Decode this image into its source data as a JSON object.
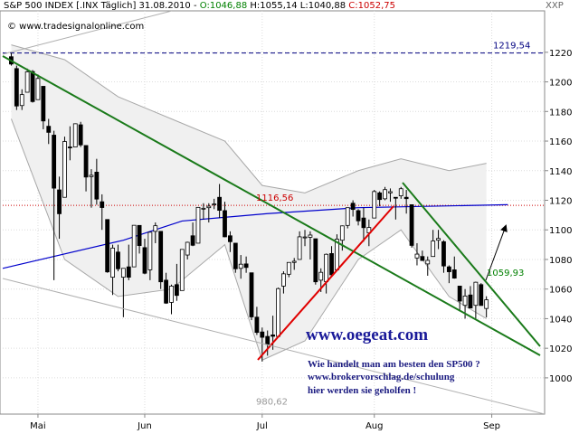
{
  "header": {
    "title": "S&P 500 INDEX [.INX Täglich] 31.08.2010 -",
    "open": "O:1046,88",
    "high_low": "H:1055,14 L:1040,88",
    "close": "C:1052,75",
    "symbol": "XXP",
    "source": "© www.tradesignalonline.com"
  },
  "chart_data": {
    "type": "candlestick",
    "categories": [
      null,
      null,
      null,
      null,
      null,
      null,
      null,
      null,
      null,
      null,
      null,
      null,
      null,
      null,
      null,
      null,
      null,
      null,
      null,
      null,
      null,
      null,
      null,
      null,
      null,
      null,
      null,
      null,
      null,
      null,
      null,
      null,
      null,
      null,
      null,
      null,
      null,
      null,
      null,
      null,
      null,
      null,
      null,
      null,
      null,
      null,
      null,
      null,
      null,
      null,
      null,
      null,
      null,
      null,
      null,
      null,
      null,
      null,
      null,
      null,
      null,
      null,
      null,
      null,
      null,
      null,
      null,
      null,
      null,
      null,
      null,
      null,
      null,
      null,
      null,
      null,
      null,
      null,
      null,
      null,
      null,
      null,
      null,
      null,
      null,
      null,
      null,
      null,
      null,
      null
    ],
    "open": [
      1217,
      1209,
      1184,
      1193,
      1207,
      1188,
      1197,
      1170,
      1164,
      1127,
      1122,
      1156,
      1156,
      1171,
      1157,
      1136,
      1139,
      1119,
      1107,
      1068,
      1085,
      1068,
      1075,
      1075,
      1103,
      1088,
      1073,
      1099,
      1099,
      1066,
      1051,
      1063,
      1059,
      1083,
      1096,
      1091,
      1114,
      1115,
      1117,
      1122,
      1113,
      1096,
      1091,
      1074,
      1077,
      1071,
      1041,
      1031,
      1028,
      1029,
      1028,
      1062,
      1070,
      1078,
      1080,
      1095,
      1095,
      1094,
      1066,
      1065,
      1084,
      1073,
      1093,
      1103,
      1118,
      1113,
      1108,
      1098,
      1108,
      1125,
      1121,
      1125,
      1122,
      1123,
      1122,
      1117,
      1081,
      1082,
      1077,
      1082,
      1093,
      1092,
      1075,
      1073,
      1062,
      1049,
      1056,
      1049,
      1063,
      1046.88
    ],
    "high": [
      1219.54,
      1211,
      1195,
      1209,
      1208,
      1205,
      1197,
      1175,
      1167,
      1136,
      1163,
      1170,
      1172,
      1173,
      1157,
      1141,
      1148,
      1124,
      1107,
      1090,
      1090,
      1074,
      1090,
      1103,
      1103,
      1094,
      1098,
      1105,
      1099,
      1071,
      1063,
      1077,
      1087,
      1092,
      1105,
      1115,
      1118,
      1118,
      1121,
      1131,
      1119,
      1099,
      1091,
      1083,
      1082,
      1071,
      1048,
      1034,
      1032,
      1042,
      1061,
      1072,
      1078,
      1081,
      1099,
      1100,
      1099,
      1094,
      1074,
      1084,
      1089,
      1097,
      1103,
      1115,
      1120,
      1114,
      1115,
      1107,
      1127,
      1126,
      1129,
      1128,
      1122,
      1129,
      1127,
      1117,
      1091,
      1086,
      1082,
      1100,
      1100,
      1093,
      1076,
      1082,
      1062,
      1060,
      1062,
      1065,
      1064,
      1055.14
    ],
    "low": [
      1211,
      1181,
      1181,
      1193,
      1186,
      1188,
      1168,
      1158,
      1066,
      1094,
      1122,
      1147,
      1156,
      1156,
      1126,
      1115,
      1117,
      1100,
      1071,
      1056,
      1072,
      1041,
      1066,
      1075,
      1084,
      1070,
      1066,
      1091,
      1060,
      1050,
      1043,
      1052,
      1059,
      1080,
      1089,
      1091,
      1107,
      1105,
      1114,
      1108,
      1095,
      1085,
      1071,
      1067,
      1071,
      1039,
      1029,
      1011,
      1015,
      1019,
      1028,
      1057,
      1068,
      1073,
      1080,
      1089,
      1080,
      1063,
      1058,
      1057,
      1068,
      1073,
      1086,
      1101,
      1109,
      1103,
      1092,
      1089,
      1108,
      1116,
      1120,
      1119,
      1107,
      1121,
      1111,
      1088,
      1076,
      1079,
      1069,
      1082,
      1087,
      1071,
      1064,
      1067,
      1046,
      1040,
      1047,
      1040,
      1049,
      1040.88
    ],
    "close": [
      1212.05,
      1183.7,
      1191.4,
      1206.8,
      1186.7,
      1202.3,
      1173.6,
      1165.9,
      1128.2,
      1110.9,
      1159.7,
      1155.8,
      1171.7,
      1157.4,
      1135.7,
      1136.9,
      1120.8,
      1115.1,
      1071.6,
      1087.7,
      1073.7,
      1074,
      1068,
      1103.1,
      1089.4,
      1070.7,
      1098.4,
      1102.8,
      1064.9,
      1050.5,
      1062,
      1055.7,
      1086.8,
      1091.6,
      1089.6,
      1115.2,
      1114.6,
      1116,
      1117.5,
      1113.2,
      1095.3,
      1092,
      1073.7,
      1076.8,
      1074.6,
      1041.2,
      1030.7,
      1027.4,
      1022.6,
      1028.1,
      1060.3,
      1070.3,
      1078,
      1078.8,
      1095.3,
      1095.2,
      1096.5,
      1064.9,
      1071.3,
      1083.5,
      1069.6,
      1093.7,
      1102.7,
      1115,
      1113.8,
      1106.1,
      1101.5,
      1101.6,
      1125.9,
      1120.5,
      1127.2,
      1125.8,
      1121.6,
      1127.8,
      1121.1,
      1089.5,
      1083.6,
      1079.3,
      1079.4,
      1092.5,
      1094.2,
      1075.6,
      1071.7,
      1067.4,
      1051.9,
      1055.3,
      1047.2,
      1064.6,
      1048.9,
      1052.75
    ],
    "up_color": "#ffffff",
    "down_color": "#000000",
    "xlim": [
      -1.6,
      99.9
    ],
    "ylim": [
      975.5,
      1248
    ],
    "yticks": [
      1000,
      1020,
      1040,
      1060,
      1080,
      1100,
      1120,
      1140,
      1160,
      1180,
      1200,
      1220
    ],
    "xticks": [
      {
        "value": 5,
        "label": "Mai"
      },
      {
        "value": 25,
        "label": "Jun"
      },
      {
        "value": 47,
        "label": "Jul"
      },
      {
        "value": 68,
        "label": "Aug"
      },
      {
        "value": 90,
        "label": "Sep"
      }
    ],
    "grid": true,
    "moving_average": {
      "color": "#0000cc",
      "x": [
        -1.6,
        21,
        32,
        48,
        65,
        93
      ],
      "values": [
        1074,
        1093,
        1106,
        1111,
        1115,
        1117
      ]
    },
    "bands": {
      "color": "#a8a8a8",
      "x": [
        0,
        10,
        20,
        30,
        40,
        47,
        55,
        65,
        73,
        82,
        89
      ],
      "upper": [
        1225,
        1215,
        1190,
        1175,
        1160,
        1130,
        1125,
        1140,
        1148,
        1140,
        1145
      ],
      "lower": [
        1175,
        1080,
        1055,
        1060,
        1090,
        1012,
        1025,
        1080,
        1100,
        1055,
        1040
      ]
    },
    "levels": [
      {
        "value": 1219.54,
        "label": "1219,54",
        "color": "#000080"
      },
      {
        "value": 1116.56,
        "label": "1116,56",
        "color": "#cc0000"
      }
    ],
    "price_labels": [
      {
        "value": 1059.93,
        "label": "1059,93",
        "color": "#008000"
      },
      {
        "value": 980.62,
        "label": "980,62",
        "color": "#999999"
      }
    ]
  },
  "promo": {
    "site": "www.oegeat.com",
    "lines": [
      "Wie handelt man am besten den SP500 ?",
      "www.brokervorschlag.de/schulung",
      "hier werden sie geholfen !"
    ]
  }
}
